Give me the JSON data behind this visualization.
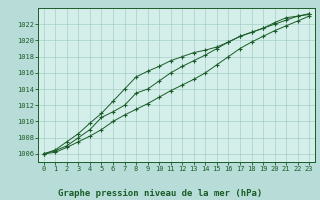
{
  "title": "Graphe pression niveau de la mer (hPa)",
  "fig_bg_color": "#b8ddd8",
  "plot_bg_color": "#d4eeea",
  "grid_color": "#9cc8c0",
  "line_color": "#1a5c28",
  "ylim": [
    1005.0,
    1024.0
  ],
  "xlim": [
    -0.5,
    23.5
  ],
  "yticks": [
    1006,
    1008,
    1010,
    1012,
    1014,
    1016,
    1018,
    1020,
    1022
  ],
  "xticks": [
    0,
    1,
    2,
    3,
    4,
    5,
    6,
    7,
    8,
    9,
    10,
    11,
    12,
    13,
    14,
    15,
    16,
    17,
    18,
    19,
    20,
    21,
    22,
    23
  ],
  "line1": [
    1006.0,
    1006.4,
    1007.0,
    1008.0,
    1009.0,
    1010.5,
    1011.2,
    1012.0,
    1013.5,
    1014.0,
    1015.0,
    1016.0,
    1016.8,
    1017.5,
    1018.2,
    1019.0,
    1019.8,
    1020.5,
    1021.0,
    1021.5,
    1022.0,
    1022.5,
    1023.0,
    1023.2
  ],
  "line2": [
    1006.0,
    1006.5,
    1007.5,
    1008.5,
    1009.8,
    1011.0,
    1012.5,
    1014.0,
    1015.5,
    1016.2,
    1016.8,
    1017.5,
    1018.0,
    1018.5,
    1018.8,
    1019.2,
    1019.8,
    1020.5,
    1021.0,
    1021.5,
    1022.2,
    1022.8,
    1023.0,
    1023.3
  ],
  "line3": [
    1006.0,
    1006.2,
    1006.8,
    1007.5,
    1008.2,
    1009.0,
    1010.0,
    1010.8,
    1011.5,
    1012.2,
    1013.0,
    1013.8,
    1014.5,
    1015.2,
    1016.0,
    1017.0,
    1018.0,
    1019.0,
    1019.8,
    1020.5,
    1021.2,
    1021.8,
    1022.4,
    1023.0
  ]
}
